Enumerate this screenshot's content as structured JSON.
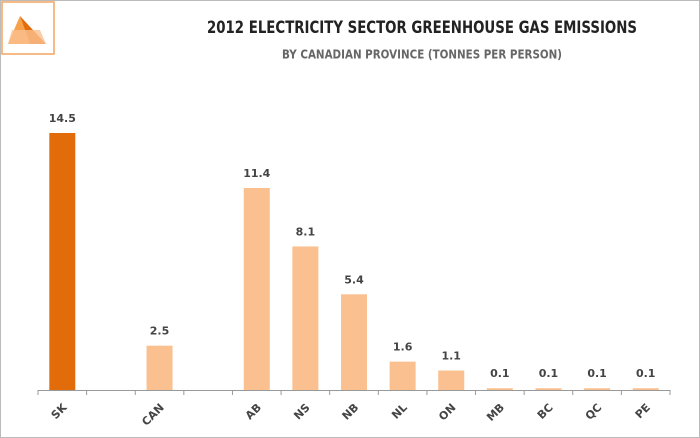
{
  "chart_data": {
    "type": "bar",
    "title": "2012 ELECTRICITY SECTOR GREENHOUSE GAS EMISSIONS",
    "subtitle": "BY CANADIAN PROVINCE (TONNES PER PERSON)",
    "categories": [
      "SK",
      null,
      "CAN",
      null,
      "AB",
      "NS",
      "NB",
      "NL",
      "ON",
      "MB",
      "BC",
      "QC",
      "PE"
    ],
    "values": [
      14.5,
      null,
      2.5,
      null,
      11.4,
      8.1,
      5.4,
      1.6,
      1.1,
      0.1,
      0.1,
      0.1,
      0.1
    ],
    "colors": [
      "#e36c0a",
      null,
      "#fac090",
      null,
      "#fac090",
      "#fac090",
      "#fac090",
      "#fac090",
      "#fac090",
      "#fac090",
      "#fac090",
      "#fac090",
      "#fac090"
    ]
  }
}
